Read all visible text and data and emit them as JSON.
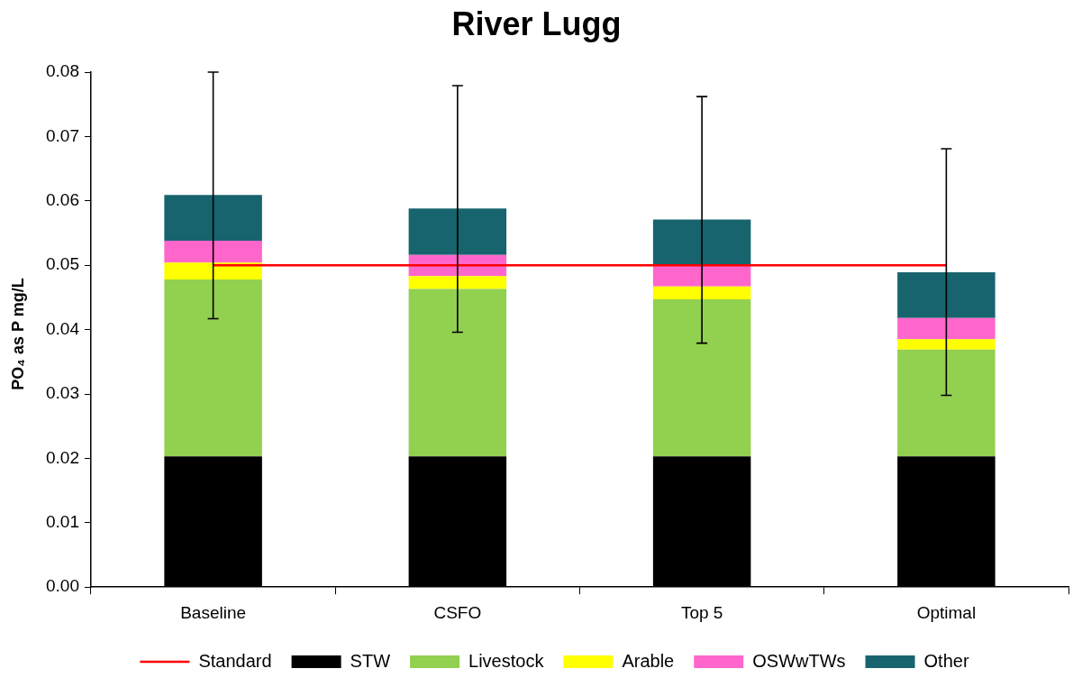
{
  "chart_data": {
    "type": "bar",
    "title": "River Lugg",
    "ylabel": "PO₄ as P mg/L",
    "categories": [
      "Baseline",
      "CSFO",
      "Top 5",
      "Optimal"
    ],
    "stacked": true,
    "series": [
      {
        "name": "STW",
        "color": "#000000",
        "values": [
          0.0203,
          0.0203,
          0.0203,
          0.0203
        ]
      },
      {
        "name": "Livestock",
        "color": "#92d050",
        "values": [
          0.0275,
          0.026,
          0.0244,
          0.0166
        ]
      },
      {
        "name": "Arable",
        "color": "#ffff00",
        "values": [
          0.0026,
          0.002,
          0.002,
          0.0016
        ]
      },
      {
        "name": "OSWwTWs",
        "color": "#ff66cc",
        "values": [
          0.0034,
          0.0033,
          0.0033,
          0.0033
        ]
      },
      {
        "name": "Other",
        "color": "#17646e",
        "values": [
          0.0071,
          0.0072,
          0.0071,
          0.0071
        ],
        "errors": [
          [
            0.0417,
            0.08
          ],
          [
            0.0396,
            0.0779
          ],
          [
            0.0379,
            0.0762
          ],
          [
            0.0298,
            0.0681
          ]
        ]
      },
      {
        "name": "Standard",
        "type": "line",
        "color": "#ff0000",
        "values": [
          0.05,
          0.05,
          0.05,
          0.05
        ],
        "marker": "none"
      }
    ],
    "ylim": [
      0,
      0.08
    ],
    "yticks": [
      {
        "value": 0,
        "label": "0.00"
      },
      0.01,
      0.02,
      0.03,
      0.04,
      0.05,
      0.06,
      0.07,
      0.08
    ],
    "grid": false,
    "legend": "bottom"
  }
}
